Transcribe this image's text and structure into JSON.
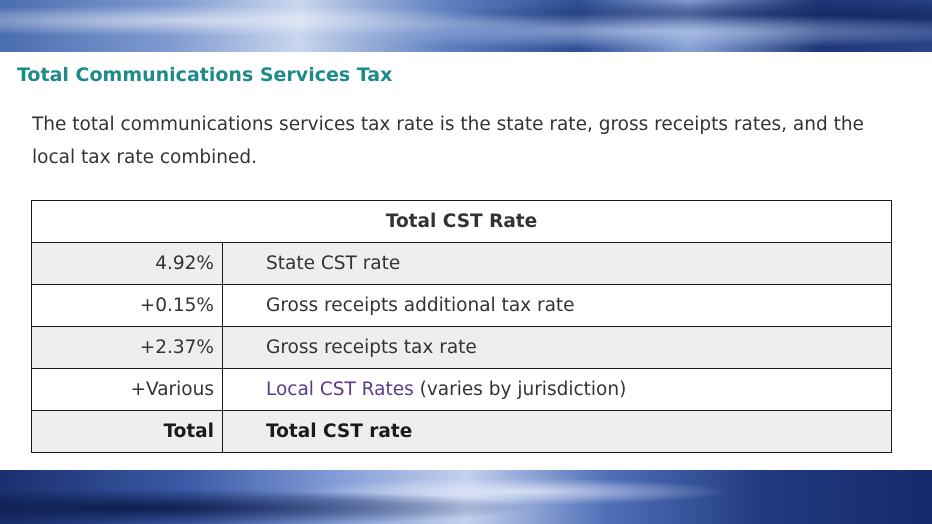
{
  "section": {
    "heading": "Total Communications Services Tax",
    "description": "The total communications services tax rate is the state rate, gross receipts rates, and the local tax rate combined."
  },
  "table": {
    "header": "Total CST Rate",
    "rows": [
      {
        "amount": "4.92%",
        "label": "State CST rate"
      },
      {
        "amount": "+0.15%",
        "label": "Gross receipts additional tax rate"
      },
      {
        "amount": "+2.37%",
        "label": "Gross receipts tax rate"
      },
      {
        "amount": "+Various",
        "link_text": "Local CST Rates",
        "label_suffix": " (varies by jurisdiction)"
      },
      {
        "amount": "Total",
        "label": "Total CST rate"
      }
    ]
  },
  "colors": {
    "heading": "#1f8a8a",
    "link": "#5a3a8a",
    "row_shade": "#eeeeee"
  }
}
